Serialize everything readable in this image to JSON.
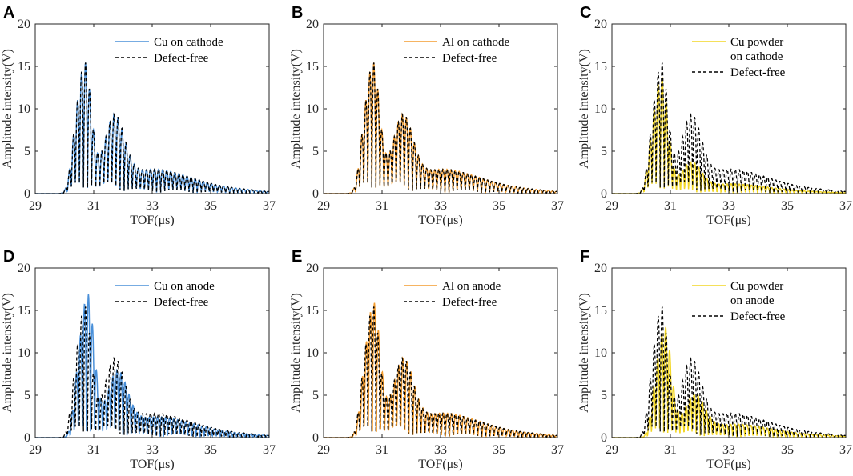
{
  "chart_data": [
    {
      "panel": "A",
      "type": "line",
      "xlabel": "TOF(μs)",
      "ylabel": "Amplitude intensity(V)",
      "xlim": [
        29,
        37
      ],
      "ylim": [
        0,
        20
      ],
      "xticks": [
        "29",
        "31",
        "33",
        "35",
        "37"
      ],
      "yticks": [
        "0",
        "5",
        "10",
        "15",
        "20"
      ],
      "series": [
        {
          "name": "Cu on cathode",
          "color": "#4a90d9",
          "dash": false,
          "profile": "defect",
          "peakScale": 1.0,
          "tailScale": 1.0,
          "shift": 0.0
        },
        {
          "name": "Defect-free",
          "color": "#000000",
          "dash": true,
          "profile": "defect",
          "peakScale": 1.0,
          "tailScale": 1.0,
          "shift": 0.0
        }
      ]
    },
    {
      "panel": "B",
      "type": "line",
      "xlabel": "TOF(μs)",
      "ylabel": "Amplitude intensity(V)",
      "xlim": [
        29,
        37
      ],
      "ylim": [
        0,
        20
      ],
      "xticks": [
        "29",
        "31",
        "33",
        "35",
        "37"
      ],
      "yticks": [
        "0",
        "5",
        "10",
        "15",
        "20"
      ],
      "series": [
        {
          "name": "Al on cathode",
          "color": "#f39c2e",
          "dash": false,
          "profile": "defect",
          "peakScale": 1.0,
          "tailScale": 1.0,
          "shift": 0.0
        },
        {
          "name": "Defect-free",
          "color": "#000000",
          "dash": true,
          "profile": "defect",
          "peakScale": 1.0,
          "tailScale": 1.0,
          "shift": 0.0
        }
      ]
    },
    {
      "panel": "C",
      "type": "line",
      "xlabel": "TOF(μs)",
      "ylabel": "Amplitude intensity(V)",
      "xlim": [
        29,
        37
      ],
      "ylim": [
        0,
        20
      ],
      "xticks": [
        "29",
        "31",
        "33",
        "35",
        "37"
      ],
      "yticks": [
        "0",
        "5",
        "10",
        "15",
        "20"
      ],
      "series": [
        {
          "name": "Cu powder on cathode",
          "legendLines": [
            "Cu powder",
            "on cathode"
          ],
          "color": "#f2d624",
          "dash": false,
          "profile": "defect",
          "peakScale": 0.9,
          "tailScale": 0.4,
          "shift": 0.0
        },
        {
          "name": "Defect-free",
          "color": "#000000",
          "dash": true,
          "profile": "defect",
          "peakScale": 1.0,
          "tailScale": 1.0,
          "shift": 0.0
        }
      ]
    },
    {
      "panel": "D",
      "type": "line",
      "xlabel": "TOF(μs)",
      "ylabel": "Amplitude intensity(V)",
      "xlim": [
        29,
        37
      ],
      "ylim": [
        0,
        20
      ],
      "xticks": [
        "29",
        "31",
        "33",
        "35",
        "37"
      ],
      "yticks": [
        "0",
        "5",
        "10",
        "15",
        "20"
      ],
      "series": [
        {
          "name": "Cu on anode",
          "color": "#4a90d9",
          "dash": false,
          "profile": "defect",
          "peakScale": 1.1,
          "tailScale": 0.85,
          "shift": 0.1
        },
        {
          "name": "Defect-free",
          "color": "#000000",
          "dash": true,
          "profile": "defect",
          "peakScale": 1.0,
          "tailScale": 1.0,
          "shift": 0.0
        }
      ]
    },
    {
      "panel": "E",
      "type": "line",
      "xlabel": "TOF(μs)",
      "ylabel": "Amplitude intensity(V)",
      "xlim": [
        29,
        37
      ],
      "ylim": [
        0,
        20
      ],
      "xticks": [
        "29",
        "31",
        "33",
        "35",
        "37"
      ],
      "yticks": [
        "0",
        "5",
        "10",
        "15",
        "20"
      ],
      "series": [
        {
          "name": "Al on anode",
          "color": "#f39c2e",
          "dash": false,
          "profile": "defect",
          "peakScale": 1.03,
          "tailScale": 1.0,
          "shift": 0.02
        },
        {
          "name": "Defect-free",
          "color": "#000000",
          "dash": true,
          "profile": "defect",
          "peakScale": 1.0,
          "tailScale": 1.0,
          "shift": 0.0
        }
      ]
    },
    {
      "panel": "F",
      "type": "line",
      "xlabel": "TOF(μs)",
      "ylabel": "Amplitude intensity(V)",
      "xlim": [
        29,
        37
      ],
      "ylim": [
        0,
        20
      ],
      "xticks": [
        "29",
        "31",
        "33",
        "35",
        "37"
      ],
      "yticks": [
        "0",
        "5",
        "10",
        "15",
        "20"
      ],
      "series": [
        {
          "name": "Cu powder on anode",
          "legendLines": [
            "Cu powder",
            "on anode"
          ],
          "color": "#f2d624",
          "dash": false,
          "profile": "defect",
          "peakScale": 0.85,
          "tailScale": 0.55,
          "shift": 0.12
        },
        {
          "name": "Defect-free",
          "color": "#000000",
          "dash": true,
          "profile": "defect",
          "peakScale": 1.0,
          "tailScale": 1.0,
          "shift": 0.0
        }
      ]
    }
  ]
}
